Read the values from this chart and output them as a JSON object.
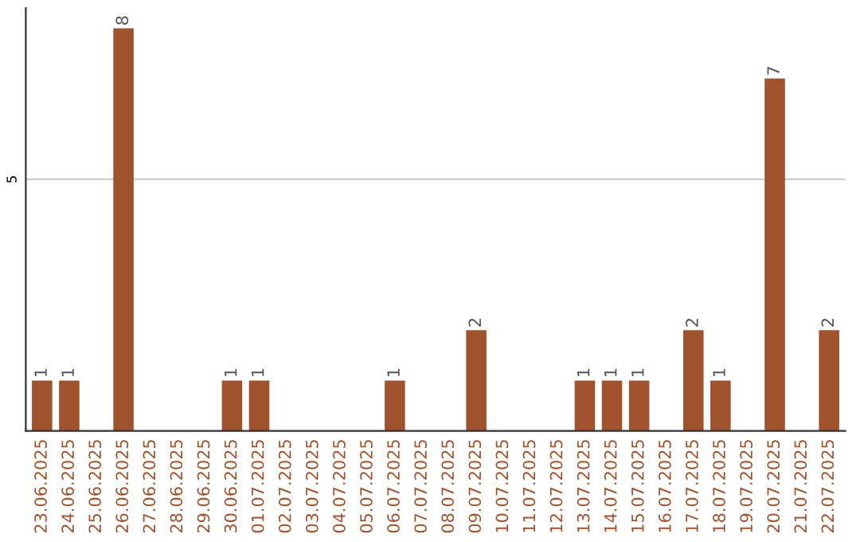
{
  "chart_data": {
    "type": "bar",
    "categories": [
      "23.06.2025",
      "24.06.2025",
      "25.06.2025",
      "26.06.2025",
      "27.06.2025",
      "28.06.2025",
      "29.06.2025",
      "30.06.2025",
      "01.07.2025",
      "02.07.2025",
      "03.07.2025",
      "04.07.2025",
      "05.07.2025",
      "06.07.2025",
      "07.07.2025",
      "08.07.2025",
      "09.07.2025",
      "10.07.2025",
      "11.07.2025",
      "12.07.2025",
      "13.07.2025",
      "14.07.2025",
      "15.07.2025",
      "16.07.2025",
      "17.07.2025",
      "18.07.2025",
      "19.07.2025",
      "20.07.2025",
      "21.07.2025",
      "22.07.2025"
    ],
    "values": [
      1,
      1,
      0,
      8,
      0,
      0,
      0,
      1,
      1,
      0,
      0,
      0,
      0,
      1,
      0,
      0,
      2,
      0,
      0,
      0,
      1,
      1,
      1,
      0,
      2,
      1,
      0,
      7,
      0,
      2
    ],
    "value_labels": [
      "1",
      "1",
      null,
      "8",
      null,
      null,
      null,
      "1",
      "1",
      null,
      null,
      null,
      null,
      "1",
      null,
      null,
      "2",
      null,
      null,
      null,
      "1",
      "1",
      "1",
      null,
      "2",
      "1",
      null,
      "7",
      null,
      "2"
    ],
    "color": "#a0522d",
    "ylim": [
      0,
      8.4
    ],
    "yticks": [
      5
    ],
    "grid": "y"
  }
}
